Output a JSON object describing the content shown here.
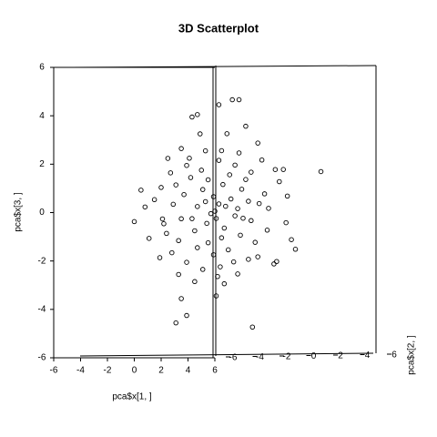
{
  "chart_data": {
    "type": "scatter3d",
    "title": "3D Scatterplot",
    "x_label": "pca$x[1, ]",
    "y_label": "pca$x[2, ]",
    "z_label": "pca$x[3, ]",
    "xlim": [
      -6,
      6
    ],
    "ylim": [
      -6,
      6
    ],
    "zlim": [
      -6,
      6
    ],
    "xticks": [
      -6,
      -4,
      -2,
      0,
      2,
      4,
      6
    ],
    "yticks": [
      -6,
      -4,
      -2,
      0,
      2,
      4,
      6
    ],
    "zticks": [
      -6,
      -4,
      -2,
      0,
      2,
      4,
      6
    ],
    "color": "#000000",
    "series": [
      {
        "x": [
          -3,
          -2.5,
          4,
          2.5,
          0.6,
          1,
          0.2,
          -0.6,
          -0.8,
          -1.5,
          -1.1,
          1.4,
          -1.3,
          0,
          2.3,
          2.2,
          -2,
          -1.7,
          -1.9,
          1.8,
          1.5,
          1.2,
          0.5,
          -0.3,
          -1.3,
          -0.9,
          0.1,
          0.8,
          1.3,
          -0.5,
          -1.5,
          -1.1,
          -0.5,
          0.3,
          1,
          1.6,
          2,
          1.4,
          0.7,
          0.2,
          -0.2,
          -0.7,
          -1.2,
          -1.6,
          -2.2,
          -1.8,
          -1.3,
          -0.8,
          -0.3,
          0.3,
          0.9,
          1.5,
          1.9,
          0.5,
          -0.1,
          -0.6,
          -1,
          -0.4,
          0.2,
          0.8,
          1.3,
          -1.4,
          -0.7,
          0.4,
          1,
          0.6,
          0,
          -0.1,
          0.1,
          0.4,
          -0.4,
          0.2,
          -0.3,
          0.5,
          -0.9,
          1.1,
          2.4,
          2.6,
          2.9,
          2.7,
          3,
          -2.4,
          -2.6,
          -2,
          -1.7,
          0.9,
          1.8,
          2.2,
          0.7,
          -0.2,
          -1.6,
          1.6,
          0.3,
          -0.6,
          -1.9,
          1.2,
          -0.9,
          0.9,
          -1.1,
          0.1
        ],
        "y": [
          -3,
          -3,
          3.9,
          2.6,
          0.7,
          0.8,
          0.1,
          -0.7,
          -0.9,
          -1.4,
          -1,
          1.4,
          -1.2,
          0.1,
          2.3,
          2.2,
          -2.1,
          -1.6,
          -2,
          1.9,
          1.7,
          1.1,
          0.4,
          -0.4,
          -1.2,
          -1,
          0.2,
          0.7,
          1.4,
          -0.5,
          -1.4,
          -1.2,
          -0.4,
          0.3,
          1,
          1.7,
          2,
          1.3,
          0.8,
          0.1,
          -0.1,
          -0.6,
          -1.3,
          -1.5,
          -2.3,
          -1.8,
          -1.4,
          -0.7,
          -0.3,
          0.4,
          1,
          1.5,
          2,
          0.5,
          0,
          -0.7,
          -1.1,
          -0.5,
          0.2,
          0.9,
          1.2,
          -1.3,
          -0.8,
          0.3,
          1.1,
          0.6,
          0,
          0,
          0,
          0.4,
          -0.3,
          0.3,
          -0.2,
          0.6,
          -0.9,
          1.2,
          2.4,
          2.7,
          2.8,
          2.7,
          3,
          -2.5,
          -2.6,
          -2,
          -1.8,
          0.9,
          1.7,
          2.3,
          0.7,
          -0.3,
          -1.6,
          1.6,
          0.2,
          -0.5,
          -1.9,
          1.3,
          -0.8,
          0.8,
          -1,
          0.1
        ],
        "z": [
          -0.4,
          0.9,
          1.6,
          1.7,
          4.6,
          4.6,
          4.4,
          4,
          3.9,
          -4.6,
          -4.3,
          -4.8,
          -3.6,
          -3.5,
          -2.1,
          -2.2,
          -1.9,
          1.6,
          -0.3,
          0.7,
          2.8,
          3.5,
          3.2,
          2.5,
          2.6,
          2.2,
          2.1,
          1.9,
          1.6,
          1.7,
          1.1,
          0.7,
          0.9,
          1.1,
          0.9,
          0.3,
          0.1,
          -0.4,
          -0.2,
          0.3,
          -0.1,
          0.2,
          -0.3,
          0.3,
          0.5,
          -0.9,
          -1.2,
          -0.8,
          -0.5,
          -0.7,
          -1,
          -1.3,
          -0.8,
          -1.6,
          -1.8,
          -1.5,
          -2.1,
          -2.4,
          -2.3,
          -2.6,
          -2,
          -2.6,
          -2.9,
          -3,
          -0.3,
          0.5,
          0,
          0.6,
          -0.3,
          0.2,
          0.4,
          -1.1,
          1.3,
          1.5,
          1.4,
          1.3,
          1.2,
          -0.5,
          -1.2,
          0.6,
          -1.6,
          -1.1,
          0.2,
          1,
          2.2,
          2.4,
          2.1,
          1.7,
          -2.1,
          -1.3,
          -1.7,
          -1.9,
          2.5,
          3.2,
          -0.5,
          0.4,
          -0.3,
          0.1,
          1.9,
          -2.7
        ]
      }
    ]
  }
}
